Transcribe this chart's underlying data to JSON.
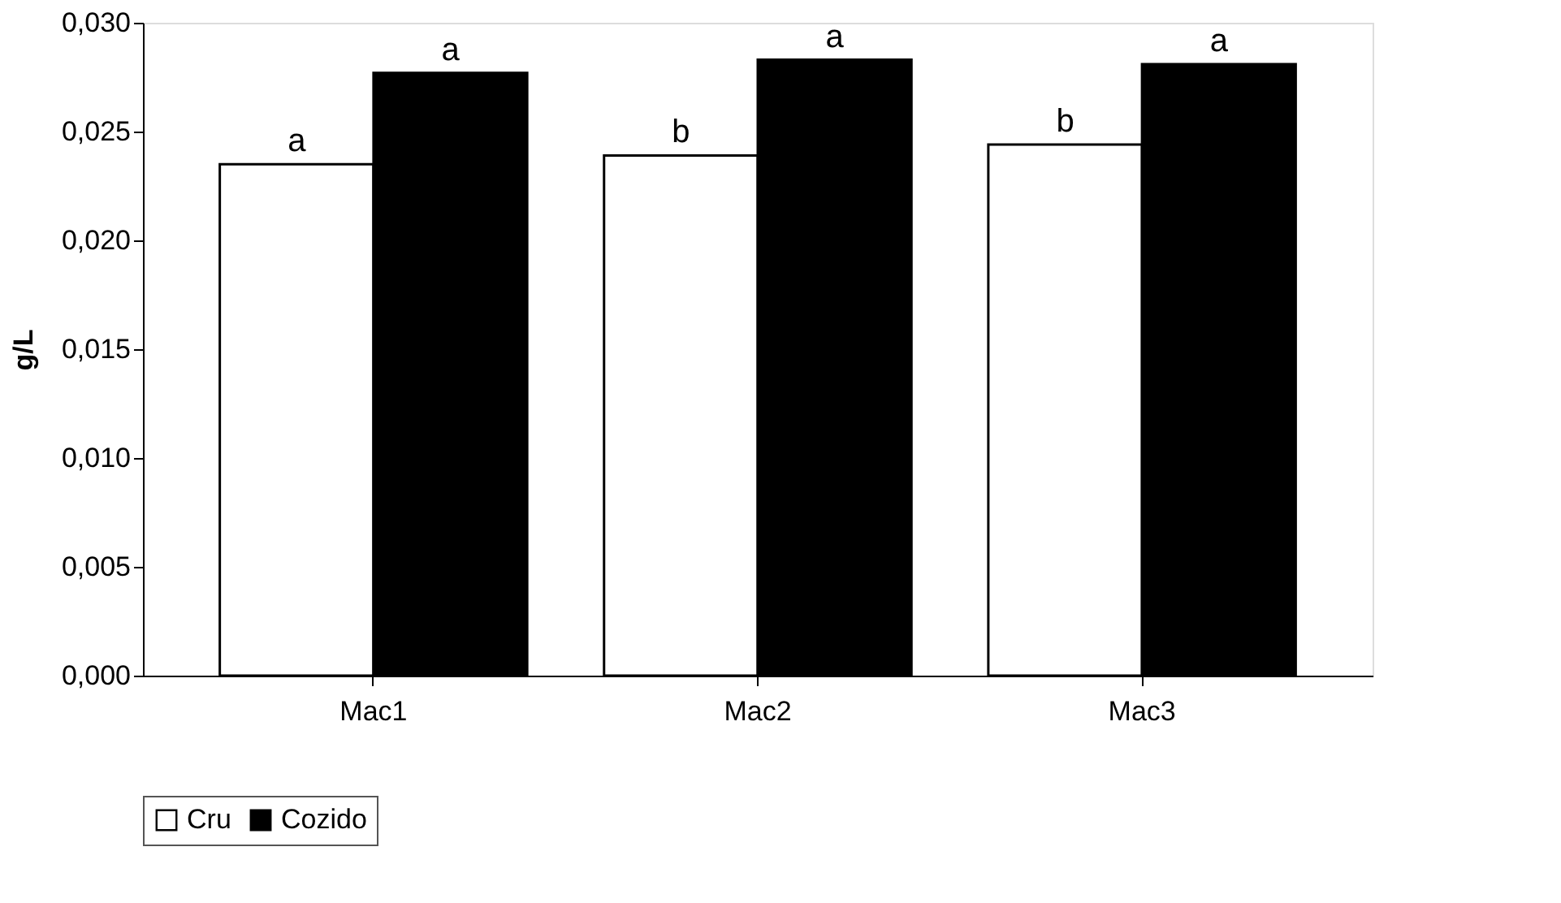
{
  "chart_data": {
    "type": "bar",
    "ylabel": "g/L",
    "categories": [
      "Mac1",
      "Mac2",
      "Mac3"
    ],
    "series": [
      {
        "name": "Cru",
        "color": "#ffffff",
        "values": [
          0.0235,
          0.0239,
          0.0244
        ],
        "value_labels": [
          "a",
          "b",
          "b"
        ]
      },
      {
        "name": "Cozido",
        "color": "#000000",
        "values": [
          0.0277,
          0.0283,
          0.0281
        ],
        "value_labels": [
          "a",
          "a",
          "a"
        ]
      }
    ],
    "ylim": [
      0,
      0.03
    ],
    "yticks": [
      {
        "value": 0,
        "label": "0,000"
      },
      {
        "value": 0.005,
        "label": "0,005"
      },
      {
        "value": 0.01,
        "label": "0,010"
      },
      {
        "value": 0.015,
        "label": "0,015"
      },
      {
        "value": 0.02,
        "label": "0,020"
      },
      {
        "value": 0.025,
        "label": "0,025"
      },
      {
        "value": 0.03,
        "label": "0,030"
      }
    ],
    "grid": false,
    "legend": "bottom"
  }
}
